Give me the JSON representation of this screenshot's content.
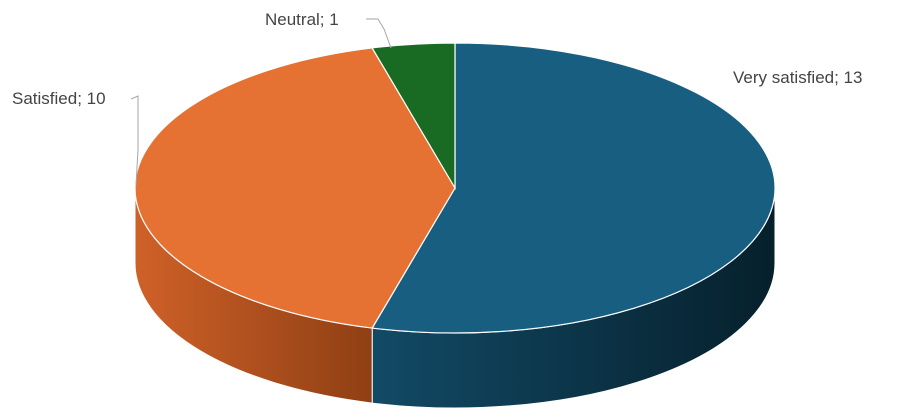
{
  "chart_data": {
    "type": "pie",
    "style": "3d",
    "title": "",
    "series": [
      {
        "values": [
          13,
          10,
          1
        ],
        "categories": [
          "Very satisfied",
          "Satisfied",
          "Neutral"
        ]
      }
    ],
    "slices": [
      {
        "category": "Very satisfied",
        "value": 13,
        "label": "Very satisfied; 13",
        "color": "#175E81"
      },
      {
        "category": "Satisfied",
        "value": 10,
        "label": "Satisfied; 10",
        "color": "#E57132"
      },
      {
        "category": "Neutral",
        "value": 1,
        "label": "Neutral; 1",
        "color": "#196B24"
      }
    ],
    "legend": "none"
  }
}
